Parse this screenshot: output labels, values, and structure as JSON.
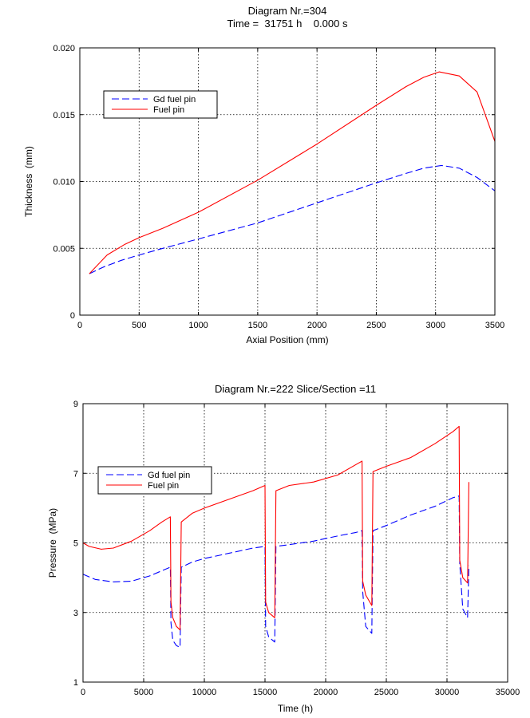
{
  "chart_data": [
    {
      "type": "line",
      "title": "Diagram Nr.=304",
      "subtitle": "Time =  31751 h    0.000 s",
      "xlabel": "Axial Position (mm)",
      "ylabel": "Thickness  (mm)",
      "xlim": [
        0,
        3500
      ],
      "ylim": [
        0,
        0.02
      ],
      "xticks": [
        0,
        500,
        1000,
        1500,
        2000,
        2500,
        3000,
        3500
      ],
      "xtick_labels": [
        "0",
        "500",
        "1000",
        "1500",
        "2000",
        "2500",
        "3000",
        "3500"
      ],
      "yticks": [
        0,
        0.005,
        0.01,
        0.015,
        0.02
      ],
      "ytick_labels": [
        "0",
        "0.005",
        "0.010",
        "0.015",
        "0.020"
      ],
      "grid": true,
      "legend_position": "upper-left",
      "series": [
        {
          "name": "Gd fuel pin",
          "color": "#0000ff",
          "dash": "dashed",
          "points": [
            [
              80,
              0.0031
            ],
            [
              200,
              0.0036
            ],
            [
              350,
              0.0041
            ],
            [
              500,
              0.0045
            ],
            [
              700,
              0.005
            ],
            [
              1000,
              0.0057
            ],
            [
              1500,
              0.0069
            ],
            [
              2000,
              0.0084
            ],
            [
              2500,
              0.0099
            ],
            [
              2750,
              0.0106
            ],
            [
              2900,
              0.011
            ],
            [
              3050,
              0.0112
            ],
            [
              3200,
              0.011
            ],
            [
              3350,
              0.0103
            ],
            [
              3500,
              0.0093
            ]
          ]
        },
        {
          "name": "Fuel pin",
          "color": "#ff0000",
          "dash": "solid",
          "points": [
            [
              80,
              0.0031
            ],
            [
              230,
              0.0045
            ],
            [
              380,
              0.0053
            ],
            [
              500,
              0.0058
            ],
            [
              700,
              0.0065
            ],
            [
              1000,
              0.0077
            ],
            [
              1500,
              0.0101
            ],
            [
              2000,
              0.0128
            ],
            [
              2500,
              0.0157
            ],
            [
              2750,
              0.0171
            ],
            [
              2900,
              0.0178
            ],
            [
              3030,
              0.0182
            ],
            [
              3200,
              0.0179
            ],
            [
              3350,
              0.0167
            ],
            [
              3500,
              0.013
            ]
          ]
        }
      ]
    },
    {
      "type": "line",
      "title": "Diagram Nr.=222 Slice/Section =11",
      "xlabel": "Time (h)",
      "ylabel": "Pressure  (MPa)",
      "xlim": [
        0,
        35000
      ],
      "ylim": [
        1,
        9
      ],
      "xticks": [
        0,
        5000,
        10000,
        15000,
        20000,
        25000,
        30000,
        35000
      ],
      "xtick_labels": [
        "0",
        "5000",
        "10000",
        "15000",
        "20000",
        "25000",
        "30000",
        "35000"
      ],
      "yticks": [
        1,
        3,
        5,
        7,
        9
      ],
      "ytick_labels": [
        "1",
        "3",
        "5",
        "7",
        "9"
      ],
      "grid": true,
      "legend_position": "upper-left",
      "series": [
        {
          "name": "Gd fuel pin",
          "color": "#0000ff",
          "dash": "dashed",
          "points": [
            [
              0,
              4.1
            ],
            [
              1000,
              3.95
            ],
            [
              2500,
              3.88
            ],
            [
              4000,
              3.9
            ],
            [
              5500,
              4.05
            ],
            [
              6500,
              4.2
            ],
            [
              7200,
              4.3
            ],
            [
              7250,
              2.7
            ],
            [
              7400,
              2.2
            ],
            [
              7700,
              2.05
            ],
            [
              8000,
              2.0
            ],
            [
              8100,
              4.3
            ],
            [
              9000,
              4.45
            ],
            [
              10000,
              4.55
            ],
            [
              12000,
              4.7
            ],
            [
              14000,
              4.85
            ],
            [
              15000,
              4.9
            ],
            [
              15050,
              2.6
            ],
            [
              15300,
              2.3
            ],
            [
              15800,
              2.15
            ],
            [
              15900,
              4.9
            ],
            [
              17000,
              4.95
            ],
            [
              19000,
              5.05
            ],
            [
              21000,
              5.2
            ],
            [
              22500,
              5.3
            ],
            [
              23000,
              5.35
            ],
            [
              23050,
              3.6
            ],
            [
              23300,
              2.6
            ],
            [
              23800,
              2.4
            ],
            [
              23900,
              5.35
            ],
            [
              25000,
              5.5
            ],
            [
              27000,
              5.8
            ],
            [
              29000,
              6.05
            ],
            [
              30500,
              6.3
            ],
            [
              31000,
              6.35
            ],
            [
              31050,
              4.4
            ],
            [
              31300,
              3.1
            ],
            [
              31700,
              2.85
            ],
            [
              31800,
              4.35
            ]
          ]
        },
        {
          "name": "Fuel pin",
          "color": "#ff0000",
          "dash": "solid",
          "points": [
            [
              0,
              5.0
            ],
            [
              500,
              4.9
            ],
            [
              1500,
              4.82
            ],
            [
              2500,
              4.85
            ],
            [
              4000,
              5.05
            ],
            [
              5500,
              5.35
            ],
            [
              6500,
              5.6
            ],
            [
              7200,
              5.75
            ],
            [
              7250,
              3.3
            ],
            [
              7400,
              2.85
            ],
            [
              7700,
              2.6
            ],
            [
              8000,
              2.5
            ],
            [
              8100,
              5.6
            ],
            [
              9000,
              5.85
            ],
            [
              10000,
              6.0
            ],
            [
              12000,
              6.25
            ],
            [
              14000,
              6.5
            ],
            [
              15000,
              6.65
            ],
            [
              15050,
              3.3
            ],
            [
              15300,
              3.0
            ],
            [
              15800,
              2.85
            ],
            [
              15900,
              6.5
            ],
            [
              17000,
              6.65
            ],
            [
              19000,
              6.75
            ],
            [
              21000,
              6.95
            ],
            [
              22500,
              7.25
            ],
            [
              23000,
              7.35
            ],
            [
              23050,
              3.9
            ],
            [
              23300,
              3.5
            ],
            [
              23800,
              3.2
            ],
            [
              23900,
              7.05
            ],
            [
              25000,
              7.2
            ],
            [
              27000,
              7.45
            ],
            [
              29000,
              7.85
            ],
            [
              30500,
              8.2
            ],
            [
              31000,
              8.35
            ],
            [
              31050,
              4.5
            ],
            [
              31300,
              4.0
            ],
            [
              31700,
              3.85
            ],
            [
              31800,
              6.75
            ]
          ]
        }
      ]
    }
  ]
}
